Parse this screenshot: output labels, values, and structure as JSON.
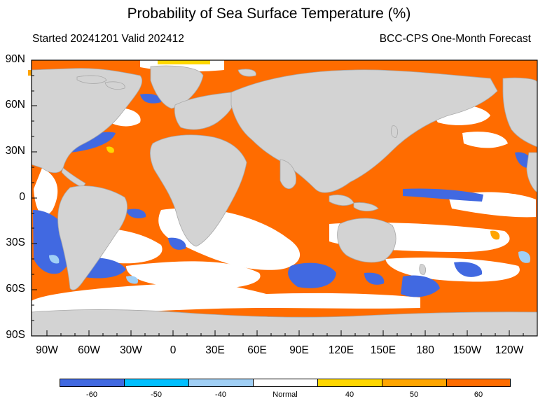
{
  "title": "Probability of Sea Surface Temperature (%)",
  "subtitle_left": "Started 20241201  Valid 202412",
  "subtitle_right": "BCC-CPS One-Month Forecast",
  "lat_labels": [
    "90N",
    "60N",
    "30N",
    "0",
    "30S",
    "60S",
    "90S"
  ],
  "lon_labels": [
    "90W",
    "60W",
    "30W",
    "0",
    "30E",
    "60E",
    "90E",
    "120E",
    "150E",
    "180",
    "150W",
    "120W"
  ],
  "colorbar": {
    "colors": [
      "#4169e1",
      "#00bfff",
      "#a0cff5",
      "#ffffff",
      "#ffd700",
      "#ffa500",
      "#ff6c00"
    ],
    "labels": [
      "-60",
      "-50",
      "-40",
      "Normal",
      "40",
      "50",
      "60"
    ]
  },
  "colors": {
    "land": "#d3d3d3",
    "warm": "#ff6c00",
    "cold": "#4169e1",
    "normal": "#ffffff"
  }
}
